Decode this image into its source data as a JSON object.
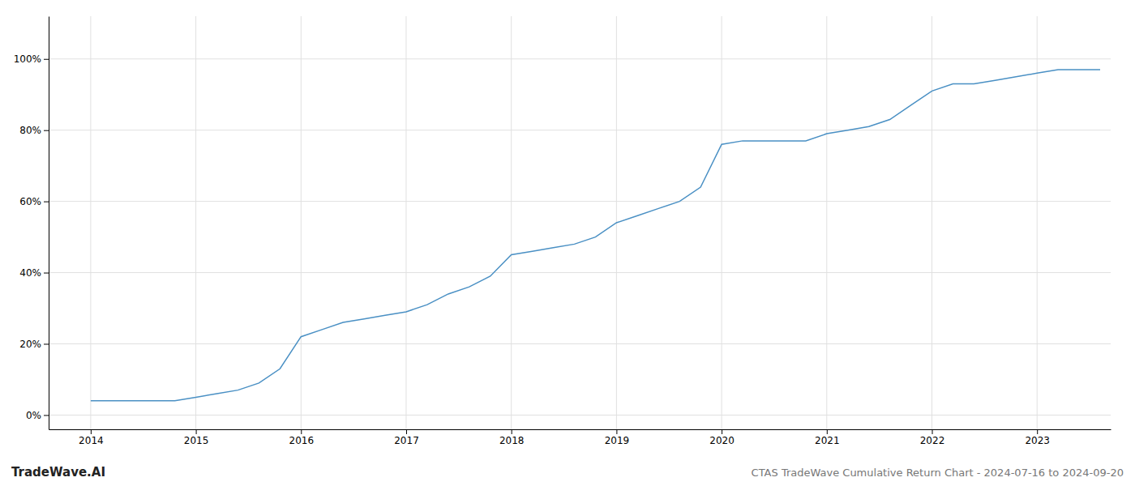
{
  "chart_data": {
    "type": "line",
    "title": "CTAS TradeWave Cumulative Return Chart - 2024-07-16 to 2024-09-20",
    "annotations": [
      "TradeWave.AI"
    ],
    "color": "#4a90c4",
    "grid": true,
    "x": [
      2014.0,
      2014.2,
      2014.4,
      2014.6,
      2014.8,
      2015.0,
      2015.2,
      2015.4,
      2015.6,
      2015.8,
      2016.0,
      2016.2,
      2016.4,
      2016.6,
      2016.8,
      2017.0,
      2017.2,
      2017.4,
      2017.6,
      2017.8,
      2018.0,
      2018.2,
      2018.4,
      2018.6,
      2018.8,
      2019.0,
      2019.2,
      2019.4,
      2019.6,
      2019.8,
      2020.0,
      2020.2,
      2020.4,
      2020.6,
      2020.8,
      2021.0,
      2021.2,
      2021.4,
      2021.6,
      2021.8,
      2022.0,
      2022.2,
      2022.4,
      2022.6,
      2022.8,
      2023.0,
      2023.2,
      2023.4,
      2023.6
    ],
    "values": [
      0.04,
      0.04,
      0.04,
      0.04,
      0.04,
      0.05,
      0.06,
      0.07,
      0.09,
      0.13,
      0.22,
      0.24,
      0.26,
      0.27,
      0.28,
      0.29,
      0.31,
      0.34,
      0.36,
      0.39,
      0.45,
      0.46,
      0.47,
      0.48,
      0.5,
      0.54,
      0.56,
      0.58,
      0.6,
      0.64,
      0.76,
      0.77,
      0.77,
      0.77,
      0.77,
      0.79,
      0.8,
      0.81,
      0.83,
      0.87,
      0.91,
      0.93,
      0.93,
      0.94,
      0.95,
      0.96,
      0.97,
      0.97,
      0.97
    ],
    "xlim": [
      2013.6,
      2023.7
    ],
    "ylim": [
      -0.04,
      1.12
    ],
    "xticks": [
      2014,
      2015,
      2016,
      2017,
      2018,
      2019,
      2020,
      2021,
      2022,
      2023
    ],
    "yticks": [
      {
        "value": 0.0,
        "label": "0%"
      },
      {
        "value": 0.2,
        "label": "20%"
      },
      {
        "value": 0.4,
        "label": "40%"
      },
      {
        "value": 0.6,
        "label": "60%"
      },
      {
        "value": 0.8,
        "label": "80%"
      },
      {
        "value": 1.0,
        "label": "100%"
      }
    ]
  }
}
